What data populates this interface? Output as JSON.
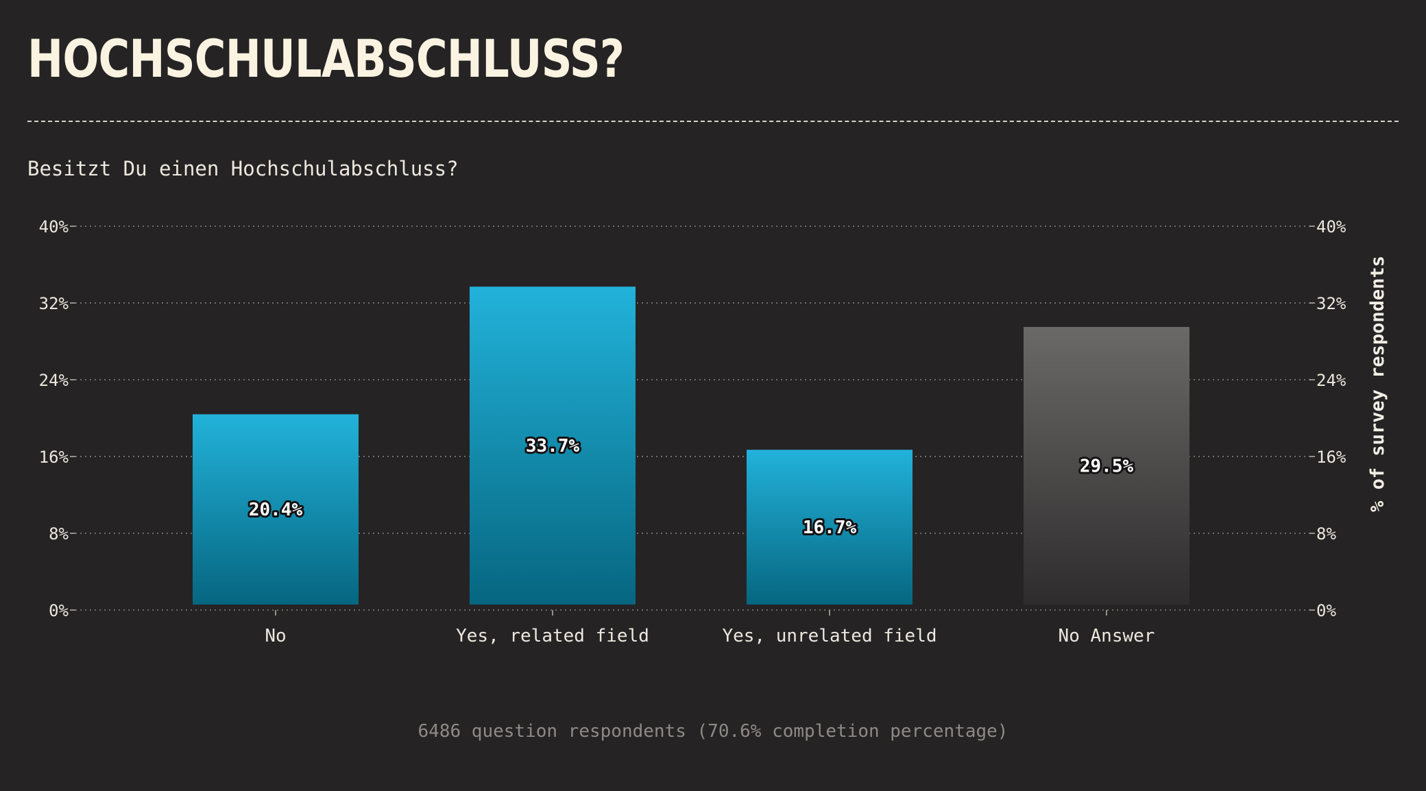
{
  "title": "HOCHSCHULABSCHLUSS?",
  "question": "Besitzt Du einen Hochschulabschluss?",
  "footer": "6486 question respondents (70.6% completion percentage)",
  "chart_data": {
    "type": "bar",
    "categories": [
      "No",
      "Yes, related field",
      "Yes, unrelated field",
      "No Answer"
    ],
    "values": [
      20.4,
      33.7,
      16.7,
      29.5
    ],
    "data_labels": [
      "20.4%",
      "33.7%",
      "16.7%",
      "29.5%"
    ],
    "y_ticks": [
      0,
      8,
      16,
      24,
      32,
      40
    ],
    "y_tick_labels": [
      "0%",
      "8%",
      "16%",
      "24%",
      "32%",
      "40%"
    ],
    "ylim": [
      0,
      40
    ],
    "ylabel": "% of survey respondents",
    "xlabel": "",
    "grid": true,
    "colors": {
      "primary_top": "#22b2da",
      "primary_bottom": "#066680",
      "muted_top": "#6b6868",
      "muted_bottom": "#2f2c2d",
      "muted_categories": [
        "No Answer"
      ]
    }
  }
}
